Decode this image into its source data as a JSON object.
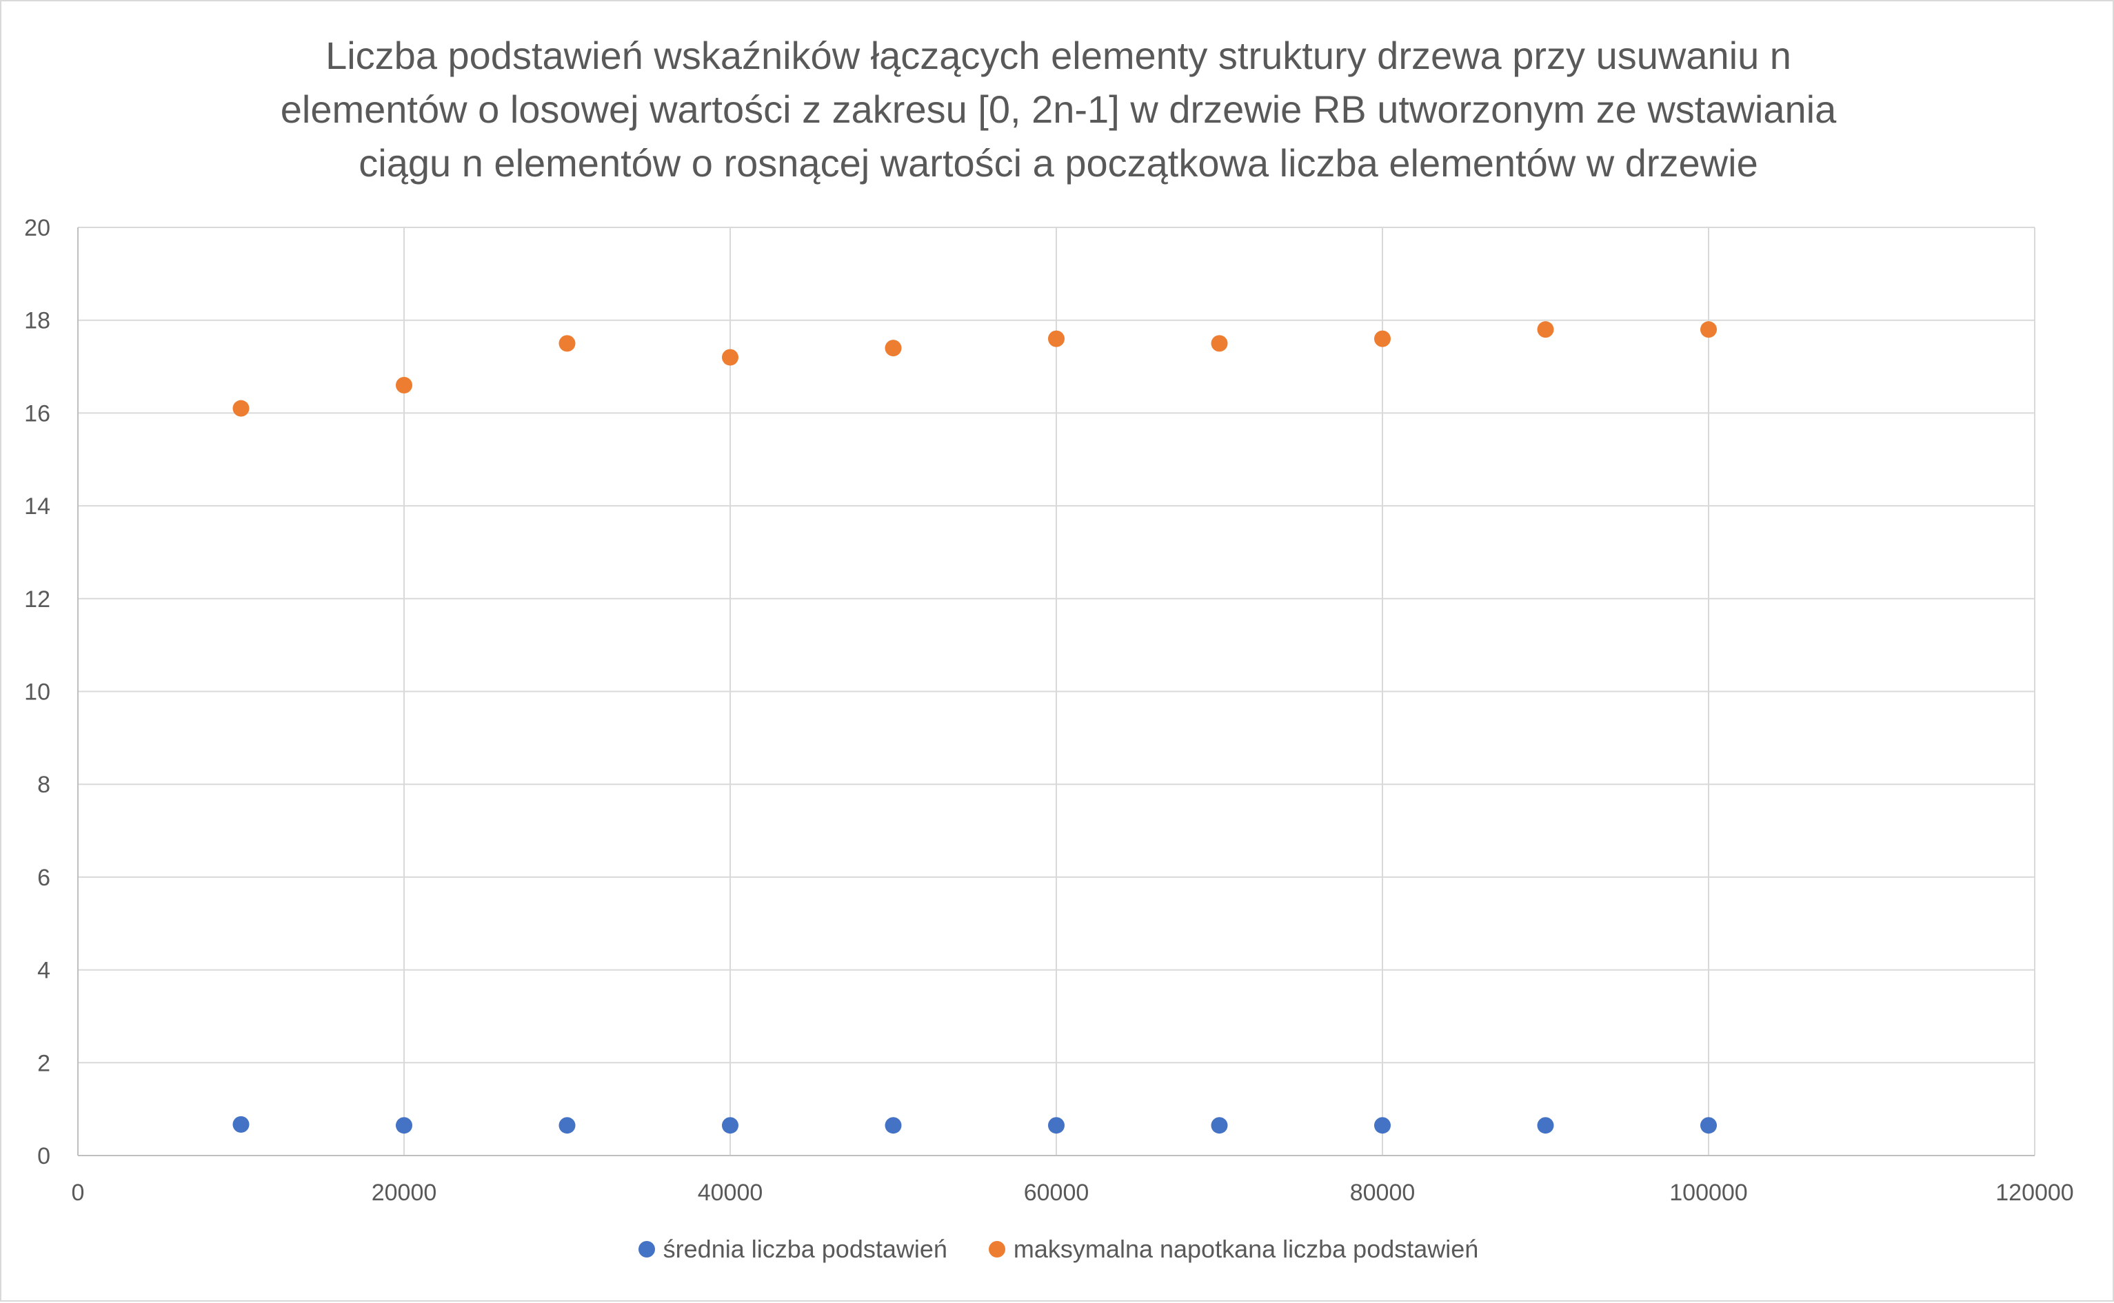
{
  "chart_data": {
    "type": "scatter",
    "title_lines": [
      "Liczba podstawień wskaźników łączących elementy struktury drzewa przy usuwaniu n",
      "elementów o losowej wartości z zakresu [0, 2n-1] w drzewie RB utworzonym ze wstawiania",
      "ciągu n elementów o rosnącej wartości a początkowa liczba elementów w drzewie"
    ],
    "xlabel": "",
    "ylabel": "",
    "xlim": [
      0,
      120000
    ],
    "ylim": [
      0,
      20
    ],
    "x_ticks": [
      "0",
      "20000",
      "40000",
      "60000",
      "80000",
      "100000",
      "120000"
    ],
    "y_ticks": [
      "0",
      "2",
      "4",
      "6",
      "8",
      "10",
      "12",
      "14",
      "16",
      "18",
      "20"
    ],
    "x_tick_values": [
      0,
      20000,
      40000,
      60000,
      80000,
      100000,
      120000
    ],
    "y_tick_values": [
      0,
      2,
      4,
      6,
      8,
      10,
      12,
      14,
      16,
      18,
      20
    ],
    "grid": true,
    "legend_position": "bottom",
    "series": [
      {
        "name": "średnia liczba podstawień",
        "color": "#4472c4",
        "x": [
          10000,
          20000,
          30000,
          40000,
          50000,
          60000,
          70000,
          80000,
          90000,
          100000
        ],
        "y": [
          0.67,
          0.65,
          0.65,
          0.65,
          0.65,
          0.65,
          0.65,
          0.65,
          0.65,
          0.65
        ]
      },
      {
        "name": "maksymalna napotkana liczba podstawień",
        "color": "#ed7d31",
        "x": [
          10000,
          20000,
          30000,
          40000,
          50000,
          60000,
          70000,
          80000,
          90000,
          100000
        ],
        "y": [
          16.1,
          16.6,
          17.5,
          17.2,
          17.4,
          17.6,
          17.5,
          17.6,
          17.8,
          17.8
        ]
      }
    ]
  }
}
